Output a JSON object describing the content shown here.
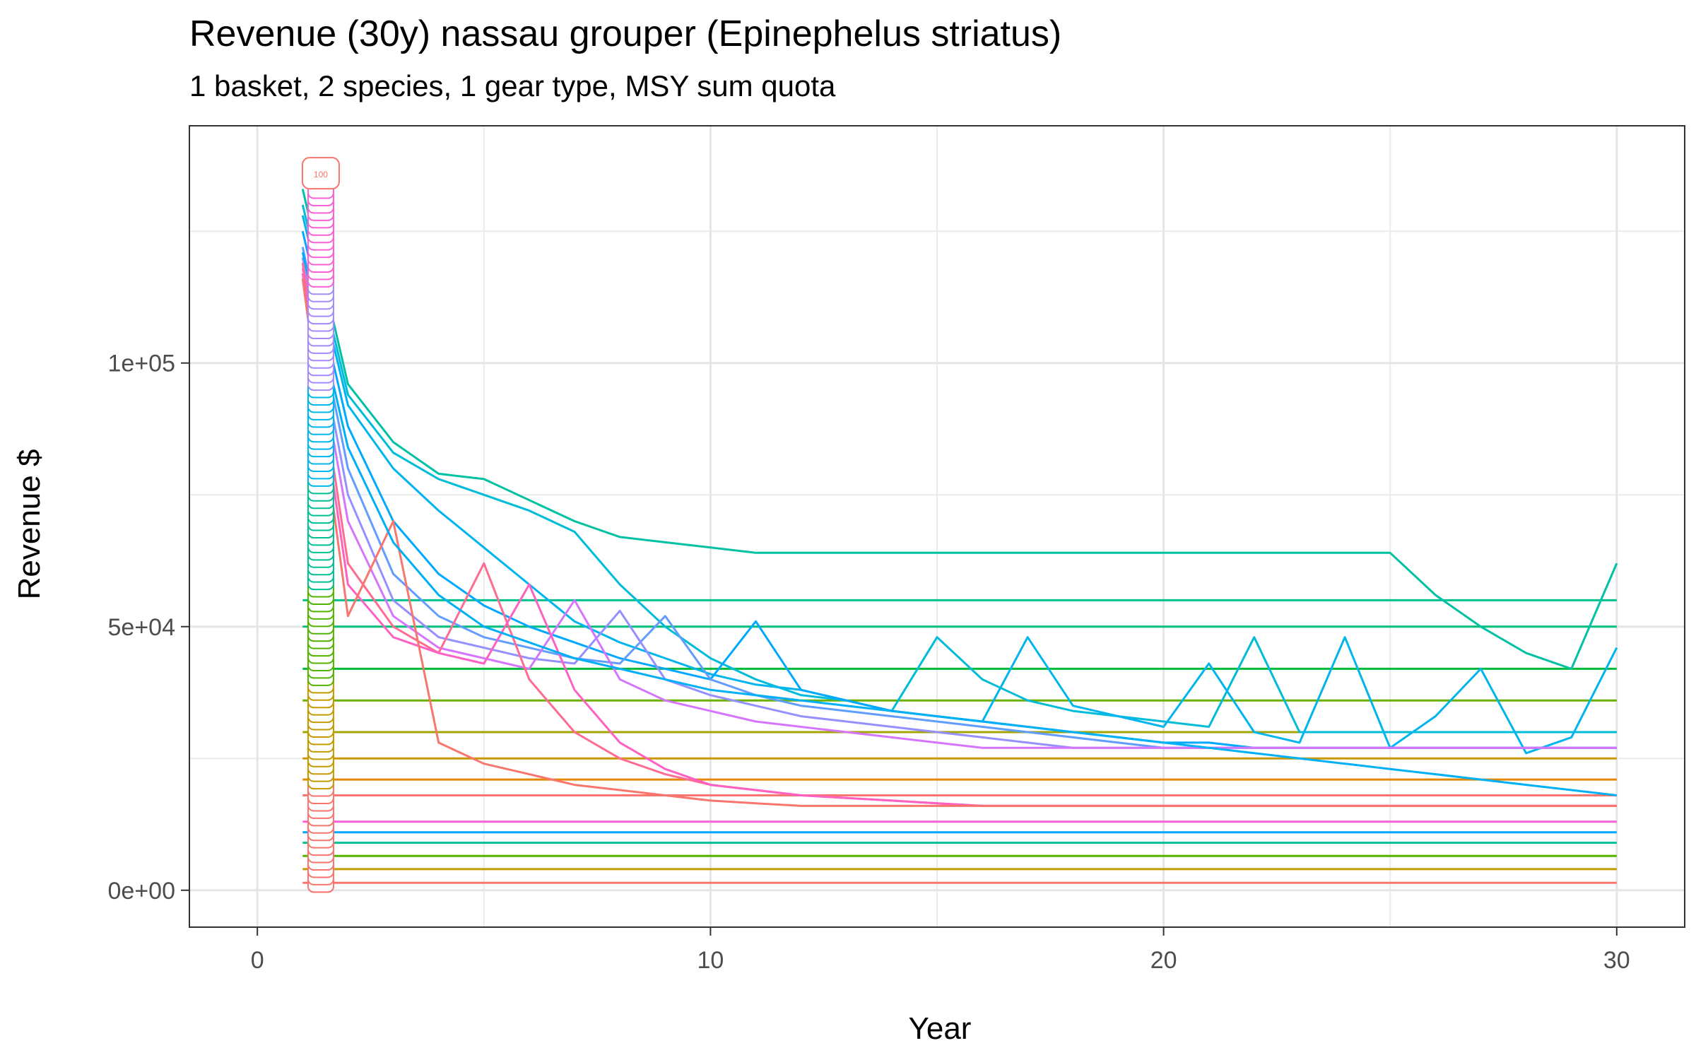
{
  "chart_data": {
    "type": "line",
    "title": "Revenue (30y) nassau grouper (Epinephelus striatus)",
    "subtitle": "1 basket, 2 species, 1 gear type, MSY sum quota",
    "xlabel": "Year",
    "ylabel": "Revenue $",
    "xlim": [
      -1.5,
      31.5
    ],
    "ylim": [
      -7000,
      145000
    ],
    "x_ticks": [
      0,
      10,
      20,
      30
    ],
    "x_tick_labels": [
      "0",
      "10",
      "20",
      "30"
    ],
    "y_ticks": [
      0,
      50000,
      100000
    ],
    "y_tick_labels": [
      "0e+00",
      "5e+04",
      "1e+05"
    ],
    "grid": true,
    "legend": "none",
    "label_x": 1.4,
    "label_values": [
      "100"
    ],
    "x": [
      1,
      2,
      3,
      4,
      5,
      6,
      7,
      8,
      9,
      10,
      11,
      12,
      13,
      14,
      15,
      16,
      17,
      18,
      19,
      20,
      21,
      22,
      23,
      24,
      25,
      26,
      27,
      28,
      29,
      30
    ],
    "series": [
      {
        "color": "#F8766D",
        "values": [
          1400,
          1400,
          1400,
          1400,
          1400,
          1400,
          1400,
          1400,
          1400,
          1400,
          1400,
          1400,
          1400,
          1400,
          1400,
          1400,
          1400,
          1400,
          1400,
          1400,
          1400,
          1400,
          1400,
          1400,
          1400,
          1400,
          1400,
          1400,
          1400,
          1400
        ]
      },
      {
        "color": "#C49A00",
        "values": [
          4000,
          4000,
          4000,
          4000,
          4000,
          4000,
          4000,
          4000,
          4000,
          4000,
          4000,
          4000,
          4000,
          4000,
          4000,
          4000,
          4000,
          4000,
          4000,
          4000,
          4000,
          4000,
          4000,
          4000,
          4000,
          4000,
          4000,
          4000,
          4000,
          4000
        ]
      },
      {
        "color": "#53B400",
        "values": [
          6500,
          6500,
          6500,
          6500,
          6500,
          6500,
          6500,
          6500,
          6500,
          6500,
          6500,
          6500,
          6500,
          6500,
          6500,
          6500,
          6500,
          6500,
          6500,
          6500,
          6500,
          6500,
          6500,
          6500,
          6500,
          6500,
          6500,
          6500,
          6500,
          6500
        ]
      },
      {
        "color": "#00C094",
        "values": [
          9000,
          9000,
          9000,
          9000,
          9000,
          9000,
          9000,
          9000,
          9000,
          9000,
          9000,
          9000,
          9000,
          9000,
          9000,
          9000,
          9000,
          9000,
          9000,
          9000,
          9000,
          9000,
          9000,
          9000,
          9000,
          9000,
          9000,
          9000,
          9000,
          9000
        ]
      },
      {
        "color": "#00A6FF",
        "values": [
          11000,
          11000,
          11000,
          11000,
          11000,
          11000,
          11000,
          11000,
          11000,
          11000,
          11000,
          11000,
          11000,
          11000,
          11000,
          11000,
          11000,
          11000,
          11000,
          11000,
          11000,
          11000,
          11000,
          11000,
          11000,
          11000,
          11000,
          11000,
          11000,
          11000
        ]
      },
      {
        "color": "#FB61D7",
        "values": [
          13000,
          13000,
          13000,
          13000,
          13000,
          13000,
          13000,
          13000,
          13000,
          13000,
          13000,
          13000,
          13000,
          13000,
          13000,
          13000,
          13000,
          13000,
          13000,
          13000,
          13000,
          13000,
          13000,
          13000,
          13000,
          13000,
          13000,
          13000,
          13000,
          13000
        ]
      },
      {
        "color": "#F8766D",
        "values": [
          18000,
          18000,
          18000,
          18000,
          18000,
          18000,
          18000,
          18000,
          18000,
          18000,
          18000,
          18000,
          18000,
          18000,
          18000,
          18000,
          18000,
          18000,
          18000,
          18000,
          18000,
          18000,
          18000,
          18000,
          18000,
          18000,
          18000,
          18000,
          18000,
          18000
        ]
      },
      {
        "color": "#E58700",
        "values": [
          21000,
          21000,
          21000,
          21000,
          21000,
          21000,
          21000,
          21000,
          21000,
          21000,
          21000,
          21000,
          21000,
          21000,
          21000,
          21000,
          21000,
          21000,
          21000,
          21000,
          21000,
          21000,
          21000,
          21000,
          21000,
          21000,
          21000,
          21000,
          21000,
          21000
        ]
      },
      {
        "color": "#C99800",
        "values": [
          25000,
          25000,
          25000,
          25000,
          25000,
          25000,
          25000,
          25000,
          25000,
          25000,
          25000,
          25000,
          25000,
          25000,
          25000,
          25000,
          25000,
          25000,
          25000,
          25000,
          25000,
          25000,
          25000,
          25000,
          25000,
          25000,
          25000,
          25000,
          25000,
          25000
        ]
      },
      {
        "color": "#A3A500",
        "values": [
          30000,
          30000,
          30000,
          30000,
          30000,
          30000,
          30000,
          30000,
          30000,
          30000,
          30000,
          30000,
          30000,
          30000,
          30000,
          30000,
          30000,
          30000,
          30000,
          30000,
          30000,
          30000,
          30000,
          30000,
          30000,
          30000,
          30000,
          30000,
          30000,
          30000
        ]
      },
      {
        "color": "#6BB100",
        "values": [
          36000,
          36000,
          36000,
          36000,
          36000,
          36000,
          36000,
          36000,
          36000,
          36000,
          36000,
          36000,
          36000,
          36000,
          36000,
          36000,
          36000,
          36000,
          36000,
          36000,
          36000,
          36000,
          36000,
          36000,
          36000,
          36000,
          36000,
          36000,
          36000,
          36000
        ]
      },
      {
        "color": "#00BA38",
        "values": [
          42000,
          42000,
          42000,
          42000,
          42000,
          42000,
          42000,
          42000,
          42000,
          42000,
          42000,
          42000,
          42000,
          42000,
          42000,
          42000,
          42000,
          42000,
          42000,
          42000,
          42000,
          42000,
          42000,
          42000,
          42000,
          42000,
          42000,
          42000,
          42000,
          42000
        ]
      },
      {
        "color": "#00BF7D",
        "values": [
          50000,
          50000,
          50000,
          50000,
          50000,
          50000,
          50000,
          50000,
          50000,
          50000,
          50000,
          50000,
          50000,
          50000,
          50000,
          50000,
          50000,
          50000,
          50000,
          50000,
          50000,
          50000,
          50000,
          50000,
          50000,
          50000,
          50000,
          50000,
          50000,
          50000
        ]
      },
      {
        "color": "#00C08B",
        "values": [
          55000,
          55000,
          55000,
          55000,
          55000,
          55000,
          55000,
          55000,
          55000,
          55000,
          55000,
          55000,
          55000,
          55000,
          55000,
          55000,
          55000,
          55000,
          55000,
          55000,
          55000,
          55000,
          55000,
          55000,
          55000,
          55000,
          55000,
          55000,
          55000,
          55000
        ]
      },
      {
        "color": "#00C1A3",
        "values": [
          133000,
          96000,
          85000,
          79000,
          78000,
          74000,
          70000,
          67000,
          66000,
          65000,
          64000,
          64000,
          64000,
          64000,
          64000,
          64000,
          64000,
          64000,
          64000,
          64000,
          64000,
          64000,
          64000,
          64000,
          64000,
          56000,
          50000,
          45000,
          42000,
          62000
        ]
      },
      {
        "color": "#00BCD8",
        "values": [
          130000,
          94000,
          83000,
          78000,
          75000,
          72000,
          68000,
          58000,
          50000,
          44000,
          40000,
          37000,
          36000,
          34000,
          48000,
          40000,
          36000,
          34000,
          33000,
          32000,
          31000,
          48000,
          30000,
          30000,
          30000,
          30000,
          30000,
          30000,
          30000,
          30000
        ]
      },
      {
        "color": "#00B5EE",
        "values": [
          128000,
          92000,
          80000,
          72000,
          65000,
          58000,
          51000,
          47000,
          44000,
          41000,
          39000,
          38000,
          36000,
          34000,
          33000,
          32000,
          48000,
          35000,
          33000,
          31000,
          43000,
          30000,
          28000,
          48000,
          27000,
          33000,
          42000,
          26000,
          29000,
          46000
        ]
      },
      {
        "color": "#00A9FF",
        "values": [
          125000,
          88000,
          70000,
          60000,
          54000,
          50000,
          47000,
          44000,
          42000,
          40000,
          51000,
          38000,
          36000,
          34000,
          33000,
          32000,
          31000,
          30000,
          29000,
          28000,
          28000,
          27000,
          27000,
          27000,
          27000,
          27000,
          27000,
          27000,
          27000,
          27000
        ]
      },
      {
        "color": "#619CFF",
        "values": [
          122000,
          80000,
          60000,
          52000,
          48000,
          46000,
          44000,
          43000,
          52000,
          40000,
          37000,
          35000,
          34000,
          33000,
          32000,
          31000,
          30000,
          29000,
          28000,
          27000,
          27000,
          27000,
          27000,
          27000,
          27000,
          27000,
          27000,
          27000,
          27000,
          27000
        ]
      },
      {
        "color": "#9590FF",
        "values": [
          120000,
          75000,
          55000,
          48000,
          46000,
          44000,
          43000,
          53000,
          40000,
          37000,
          35000,
          33000,
          32000,
          31000,
          30000,
          29000,
          28000,
          27000,
          27000,
          27000,
          27000,
          27000,
          27000,
          27000,
          27000,
          27000,
          27000,
          27000,
          27000,
          27000
        ]
      },
      {
        "color": "#D575FE",
        "values": [
          118000,
          70000,
          52000,
          46000,
          44000,
          42000,
          55000,
          40000,
          36000,
          34000,
          32000,
          31000,
          30000,
          29000,
          28000,
          27000,
          27000,
          27000,
          27000,
          27000,
          27000,
          27000,
          27000,
          27000,
          27000,
          27000,
          27000,
          27000,
          27000,
          27000
        ]
      },
      {
        "color": "#FF6C91",
        "values": [
          119000,
          62000,
          50000,
          45000,
          62000,
          40000,
          30000,
          25000,
          22000,
          20000,
          19000,
          18000,
          17500,
          17000,
          16500,
          16000,
          16000,
          16000,
          16000,
          16000,
          16000,
          16000,
          16000,
          16000,
          16000,
          16000,
          16000,
          16000,
          16000,
          16000
        ]
      },
      {
        "color": "#FF61C3",
        "values": [
          117000,
          58000,
          48000,
          45000,
          43000,
          58000,
          38000,
          28000,
          23000,
          20000,
          19000,
          18000,
          17500,
          17000,
          16500,
          16000,
          16000,
          16000,
          16000,
          16000,
          16000,
          16000,
          16000,
          16000,
          16000,
          16000,
          16000,
          16000,
          16000,
          16000
        ]
      },
      {
        "color": "#F8766D",
        "values": [
          116000,
          52000,
          70000,
          28000,
          24000,
          22000,
          20000,
          19000,
          18000,
          17000,
          16500,
          16000,
          16000,
          16000,
          16000,
          16000,
          16000,
          16000,
          16000,
          16000,
          16000,
          16000,
          16000,
          16000,
          16000,
          16000,
          16000,
          16000,
          16000,
          16000
        ]
      },
      {
        "color": "#00B0F6",
        "values": [
          121000,
          84000,
          66000,
          56000,
          50000,
          47000,
          44000,
          42000,
          40000,
          38000,
          37000,
          36000,
          35000,
          34000,
          33000,
          32000,
          31000,
          30000,
          29000,
          28000,
          27000,
          26000,
          25000,
          24000,
          23000,
          22000,
          21000,
          20000,
          19000,
          18000
        ]
      }
    ]
  }
}
